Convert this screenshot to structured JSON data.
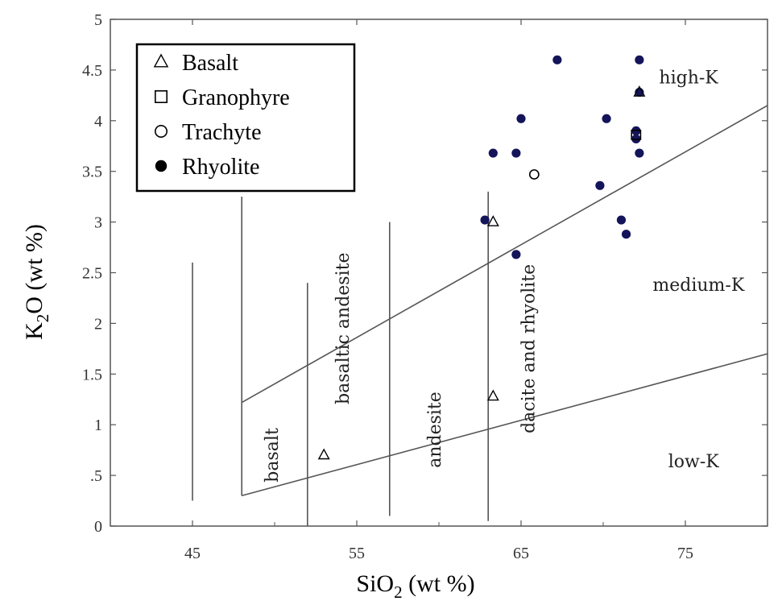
{
  "chart_data": {
    "type": "scatter",
    "title": "",
    "xlabel": "SiO",
    "xlabel_sub": "2",
    "xlabel_unit": " (wt %)",
    "ylabel": "K",
    "ylabel_sub": "2",
    "ylabel_unit": "O (wt %)",
    "xlim": [
      40,
      80
    ],
    "ylim": [
      0,
      5
    ],
    "xticks": [
      45,
      55,
      65,
      75
    ],
    "yticks": [
      0,
      0.5,
      1,
      1.5,
      2,
      2.5,
      3,
      3.5,
      4,
      4.5,
      5
    ],
    "ytick_labels": [
      "0",
      ".5",
      "1",
      "1.5",
      "2",
      "2.5",
      "3",
      "3.5",
      "4",
      "4.5",
      "5"
    ],
    "grid": false,
    "legend_position": "top-left",
    "colors": {
      "rhyolite": "#14145a",
      "lines": "#555555",
      "axis": "#555555"
    },
    "series": [
      {
        "name": "Basalt",
        "marker": "triangle-open",
        "points": [
          [
            53,
            0.7
          ],
          [
            63.3,
            3.0
          ],
          [
            63.3,
            1.28
          ],
          [
            72.2,
            4.28
          ]
        ]
      },
      {
        "name": "Granophyre",
        "marker": "square-open",
        "points": [
          [
            72,
            3.86
          ]
        ]
      },
      {
        "name": "Trachyte",
        "marker": "circle-open",
        "points": [
          [
            65.8,
            3.47
          ]
        ]
      },
      {
        "name": "Rhyolite",
        "marker": "circle-filled",
        "points": [
          [
            67.2,
            4.6
          ],
          [
            72.2,
            4.6
          ],
          [
            72.2,
            4.28
          ],
          [
            65,
            4.02
          ],
          [
            70.2,
            4.02
          ],
          [
            72,
            3.9
          ],
          [
            72,
            3.82
          ],
          [
            63.3,
            3.68
          ],
          [
            64.7,
            3.68
          ],
          [
            72.2,
            3.68
          ],
          [
            69.8,
            3.36
          ],
          [
            62.8,
            3.02
          ],
          [
            71.1,
            3.02
          ],
          [
            71.4,
            2.88
          ],
          [
            64.7,
            2.68
          ]
        ]
      }
    ],
    "boundary_lines": [
      {
        "from": [
          48,
          1.22
        ],
        "to": [
          80,
          4.15
        ]
      },
      {
        "from": [
          48,
          0.3
        ],
        "to": [
          80,
          1.7
        ]
      }
    ],
    "vertical_lines": [
      {
        "x": 45,
        "y": [
          0.25,
          2.6
        ]
      },
      {
        "x": 48,
        "y": [
          0.3,
          3.25
        ]
      },
      {
        "x": 52,
        "y": [
          0,
          2.4
        ]
      },
      {
        "x": 57,
        "y": [
          0.1,
          3.0
        ]
      },
      {
        "x": 63,
        "y": [
          0.05,
          3.3
        ]
      }
    ],
    "region_labels": [
      {
        "text": "basalt",
        "x": 50.2,
        "y": 0.7,
        "rotate": -90
      },
      {
        "text": "basaltic andesite",
        "x": 54.5,
        "y": 1.95,
        "rotate": -90
      },
      {
        "text": "andesite",
        "x": 60.1,
        "y": 0.95,
        "rotate": -90
      },
      {
        "text": "dacite and rhyolite",
        "x": 65.8,
        "y": 1.75,
        "rotate": -90
      },
      {
        "text": "high-K",
        "x": 75.2,
        "y": 4.37,
        "rotate": 0
      },
      {
        "text": "medium-K",
        "x": 75.8,
        "y": 2.32,
        "rotate": 0
      },
      {
        "text": "low-K",
        "x": 75.5,
        "y": 0.58,
        "rotate": 0
      }
    ]
  }
}
